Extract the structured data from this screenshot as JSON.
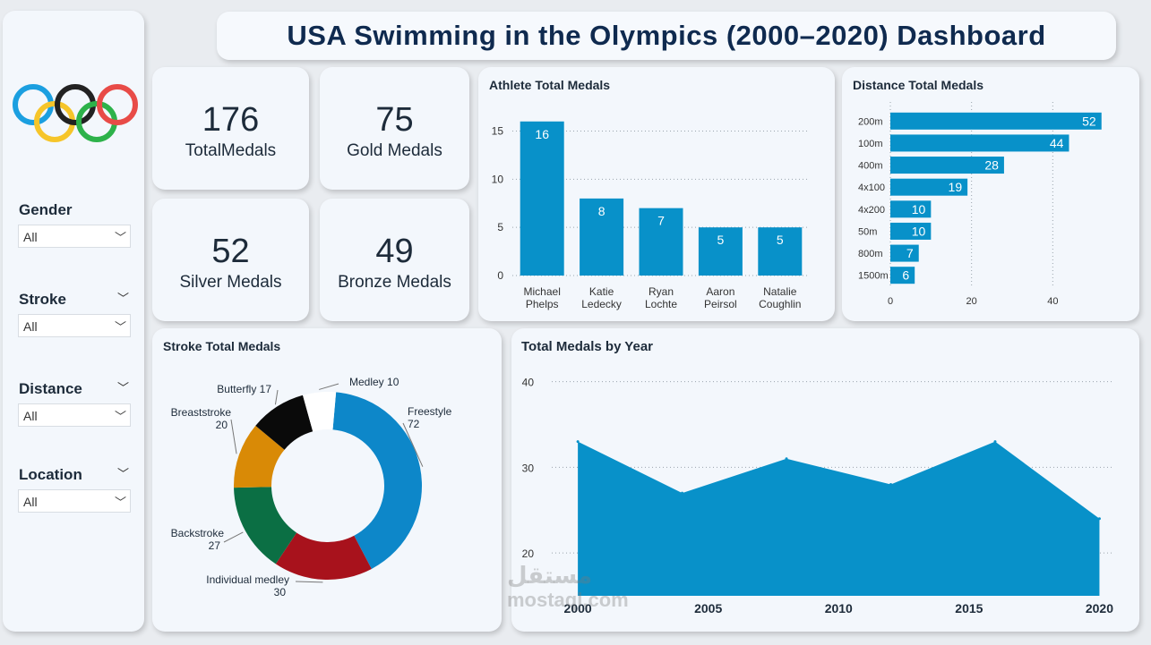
{
  "title": "USA Swimming in the Olympics (2000–2020) Dashboard",
  "colors": {
    "bar": "#0891c9",
    "ring_blue": "#1b9fe0",
    "ring_yellow": "#f6c52a",
    "ring_black": "#222222",
    "ring_green": "#2db24a",
    "ring_red": "#e84b47"
  },
  "sidebar": {
    "filters": [
      {
        "label": "Gender",
        "value": "All",
        "has_chevron": false
      },
      {
        "label": "Stroke",
        "value": "All",
        "has_chevron": true
      },
      {
        "label": "Distance",
        "value": "All",
        "has_chevron": true
      },
      {
        "label": "Location",
        "value": "All",
        "has_chevron": true
      }
    ]
  },
  "kpis": {
    "total": {
      "value": "176",
      "label": "TotalMedals"
    },
    "gold": {
      "value": "75",
      "label": "Gold Medals"
    },
    "silver": {
      "value": "52",
      "label": "Silver Medals"
    },
    "bronze": {
      "value": "49",
      "label": "Bronze Medals"
    }
  },
  "watermark": {
    "arabic": "مستقل",
    "latin": "mostaql.com"
  },
  "chart_data": [
    {
      "id": "athlete",
      "type": "bar",
      "title": "Athlete Total Medals",
      "categories": [
        [
          "Michael",
          "Phelps"
        ],
        [
          "Katie",
          "Ledecky"
        ],
        [
          "Ryan",
          "Lochte"
        ],
        [
          "Aaron",
          "Peirsol"
        ],
        [
          "Natalie",
          "Coughlin"
        ]
      ],
      "values": [
        16,
        8,
        7,
        5,
        5
      ],
      "yticks": [
        0,
        5,
        10,
        15
      ],
      "ylim": [
        0,
        17
      ],
      "grid": true
    },
    {
      "id": "distance",
      "type": "bar",
      "orientation": "horizontal",
      "title": "Distance Total Medals",
      "categories": [
        "200m",
        "100m",
        "400m",
        "4x100",
        "4x200",
        "50m",
        "800m",
        "1500m"
      ],
      "values": [
        52,
        44,
        28,
        19,
        10,
        10,
        7,
        6
      ],
      "xticks": [
        0,
        20,
        40
      ],
      "xlim": [
        0,
        60
      ],
      "grid": true
    },
    {
      "id": "stroke",
      "type": "pie",
      "donut": true,
      "title": "Stroke Total Medals",
      "slices": [
        {
          "label": "Freestyle",
          "value": 72,
          "color": "#0d87c9"
        },
        {
          "label": "Individual medley",
          "value": 30,
          "color": "#a8121c"
        },
        {
          "label": "Backstroke",
          "value": 27,
          "color": "#0b6f44"
        },
        {
          "label": "Breaststroke",
          "value": 20,
          "color": "#d98a06"
        },
        {
          "label": "Butterfly",
          "value": 17,
          "color": "#0a0a0a"
        },
        {
          "label": "Medley",
          "value": 10,
          "color": "#ffffff"
        }
      ]
    },
    {
      "id": "year",
      "type": "area",
      "title": "Total Medals by Year",
      "x": [
        2000,
        2004,
        2008,
        2012,
        2016,
        2020
      ],
      "values": [
        33,
        27,
        31,
        28,
        33,
        24
      ],
      "xticks": [
        2000,
        2005,
        2010,
        2015,
        2020
      ],
      "yticks": [
        20,
        30,
        40
      ],
      "ylim": [
        15,
        41
      ],
      "xlim": [
        1999,
        2020.5
      ]
    }
  ]
}
